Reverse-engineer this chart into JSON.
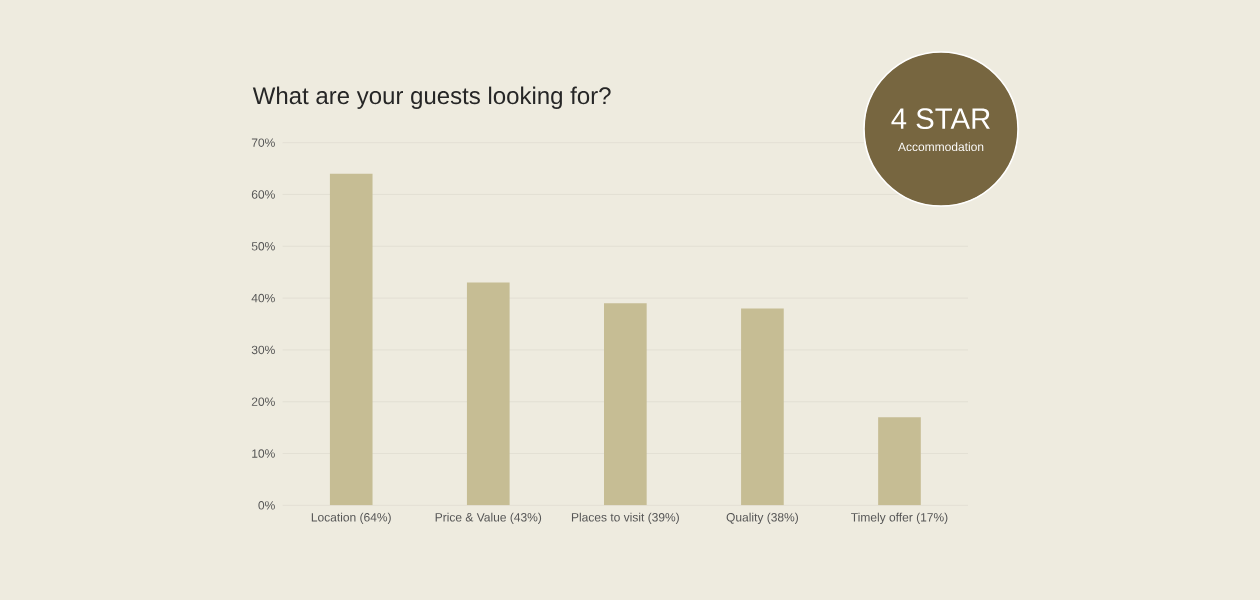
{
  "chart_data": {
    "type": "bar",
    "title": "What are your guests looking for?",
    "categories": [
      "Location (64%)",
      "Price & Value (43%)",
      "Places to visit (39%)",
      "Quality (38%)",
      "Timely offer (17%)"
    ],
    "values": [
      64,
      43,
      39,
      38,
      17
    ],
    "color": "#c6bd94",
    "ylim": [
      0,
      70
    ],
    "yticks": [
      {
        "value": 0,
        "label": "0%"
      },
      {
        "value": 10,
        "label": "10%"
      },
      {
        "value": 20,
        "label": "20%"
      },
      {
        "value": 30,
        "label": "30%"
      },
      {
        "value": 40,
        "label": "40%"
      },
      {
        "value": 50,
        "label": "50%"
      },
      {
        "value": 60,
        "label": "60%"
      },
      {
        "value": 70,
        "label": "70%"
      }
    ],
    "grid": "y",
    "annotations": [
      "4 STAR",
      "Accommodation"
    ]
  }
}
